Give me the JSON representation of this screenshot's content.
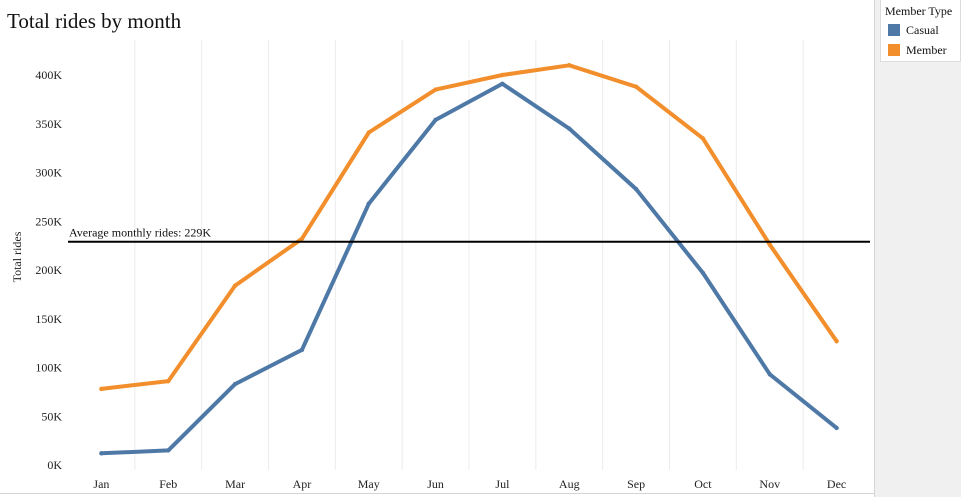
{
  "chart_data": {
    "type": "line",
    "title": "Total rides by month",
    "xlabel": "",
    "ylabel": "Total rides",
    "categories": [
      "Jan",
      "Feb",
      "Mar",
      "Apr",
      "May",
      "Jun",
      "Jul",
      "Aug",
      "Sep",
      "Oct",
      "Nov",
      "Dec"
    ],
    "ylim": [
      0,
      420000
    ],
    "yticks": [
      0,
      50000,
      100000,
      150000,
      200000,
      250000,
      300000,
      350000,
      400000
    ],
    "ytick_labels": [
      "0K",
      "50K",
      "100K",
      "150K",
      "200K",
      "250K",
      "300K",
      "350K",
      "400K"
    ],
    "series": [
      {
        "name": "Casual",
        "color": "#4e79a7",
        "values": [
          12000,
          15000,
          83000,
          118000,
          268000,
          354000,
          391000,
          345000,
          283000,
          197000,
          93000,
          38000
        ]
      },
      {
        "name": "Member",
        "color": "#f28e2b",
        "values": [
          78000,
          86000,
          184000,
          232000,
          341000,
          385000,
          400000,
          410000,
          388000,
          335000,
          226000,
          127000
        ]
      }
    ],
    "reference_line": {
      "value": 229000,
      "label": "Average monthly rides: 229K",
      "color": "#000000"
    },
    "grid": true,
    "legend_position": "top-right"
  },
  "legend": {
    "title": "Member Type",
    "items": [
      {
        "label": "Casual",
        "color": "#4e79a7"
      },
      {
        "label": "Member",
        "color": "#f28e2b"
      }
    ]
  }
}
